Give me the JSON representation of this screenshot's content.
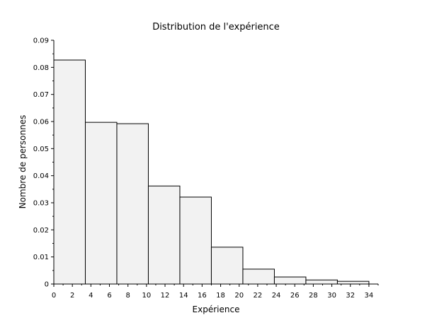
{
  "chart_data": {
    "type": "bar",
    "title": "Distribution de l'expérience",
    "xlabel": "Expérience",
    "ylabel": "Nombre de personnes",
    "xlim": [
      0,
      35
    ],
    "ylim": [
      0,
      0.09
    ],
    "xticks": [
      "0",
      "2",
      "4",
      "6",
      "8",
      "10",
      "12",
      "14",
      "16",
      "18",
      "20",
      "22",
      "24",
      "26",
      "28",
      "30",
      "32",
      "34"
    ],
    "yticks": [
      "0",
      "0.01",
      "0.02",
      "0.03",
      "0.04",
      "0.05",
      "0.06",
      "0.07",
      "0.08",
      "0.09"
    ],
    "grid": false,
    "bins": [
      {
        "x0": 0.0,
        "x1": 3.4,
        "value": 0.0827
      },
      {
        "x0": 3.4,
        "x1": 6.8,
        "value": 0.0597
      },
      {
        "x0": 6.8,
        "x1": 10.2,
        "value": 0.0592
      },
      {
        "x0": 10.2,
        "x1": 13.6,
        "value": 0.0362
      },
      {
        "x0": 13.6,
        "x1": 17.0,
        "value": 0.0321
      },
      {
        "x0": 17.0,
        "x1": 20.4,
        "value": 0.0136
      },
      {
        "x0": 20.4,
        "x1": 23.8,
        "value": 0.0055
      },
      {
        "x0": 23.8,
        "x1": 27.2,
        "value": 0.0026
      },
      {
        "x0": 27.2,
        "x1": 30.6,
        "value": 0.0015
      },
      {
        "x0": 30.6,
        "x1": 34.0,
        "value": 0.001
      }
    ],
    "bar_fill": "#f2f2f2",
    "bar_stroke": "#000000"
  }
}
